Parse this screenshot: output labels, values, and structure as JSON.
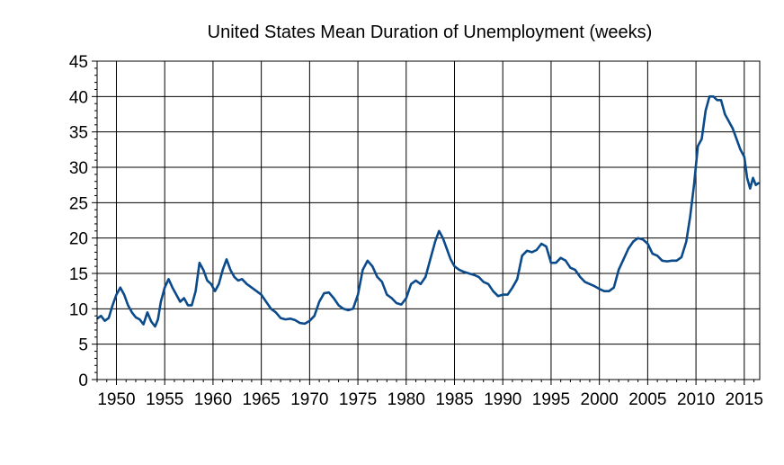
{
  "chart_data": {
    "type": "line",
    "title": "United States Mean Duration of Unemployment (weeks)",
    "xlabel": "",
    "ylabel": "",
    "xlim": [
      1948,
      2016.6
    ],
    "ylim": [
      0,
      45
    ],
    "x_ticks": [
      1950,
      1955,
      1960,
      1965,
      1970,
      1975,
      1980,
      1985,
      1990,
      1995,
      2000,
      2005,
      2010,
      2015
    ],
    "y_ticks": [
      0,
      5,
      10,
      15,
      20,
      25,
      30,
      35,
      40,
      45
    ],
    "grid": true,
    "series_color": "#0b4a8b",
    "series": [
      {
        "name": "",
        "points": [
          [
            1948.0,
            8.6
          ],
          [
            1948.4,
            9.0
          ],
          [
            1948.8,
            8.3
          ],
          [
            1949.2,
            8.7
          ],
          [
            1949.6,
            10.5
          ],
          [
            1950.0,
            12.0
          ],
          [
            1950.4,
            13.0
          ],
          [
            1950.8,
            12.0
          ],
          [
            1951.2,
            10.5
          ],
          [
            1951.6,
            9.5
          ],
          [
            1952.0,
            8.8
          ],
          [
            1952.4,
            8.5
          ],
          [
            1952.8,
            7.8
          ],
          [
            1953.2,
            9.5
          ],
          [
            1953.6,
            8.2
          ],
          [
            1954.0,
            7.5
          ],
          [
            1954.3,
            8.5
          ],
          [
            1954.6,
            11.0
          ],
          [
            1955.0,
            13.0
          ],
          [
            1955.4,
            14.2
          ],
          [
            1955.8,
            13.0
          ],
          [
            1956.2,
            12.0
          ],
          [
            1956.6,
            11.0
          ],
          [
            1957.0,
            11.5
          ],
          [
            1957.4,
            10.5
          ],
          [
            1957.8,
            10.5
          ],
          [
            1958.2,
            12.5
          ],
          [
            1958.6,
            16.5
          ],
          [
            1959.0,
            15.5
          ],
          [
            1959.4,
            14.0
          ],
          [
            1959.8,
            13.5
          ],
          [
            1960.2,
            12.5
          ],
          [
            1960.6,
            13.5
          ],
          [
            1961.0,
            15.5
          ],
          [
            1961.4,
            17.0
          ],
          [
            1961.8,
            15.5
          ],
          [
            1962.2,
            14.5
          ],
          [
            1962.6,
            14.0
          ],
          [
            1963.0,
            14.2
          ],
          [
            1963.5,
            13.5
          ],
          [
            1964.0,
            13.0
          ],
          [
            1964.5,
            12.5
          ],
          [
            1965.0,
            12.0
          ],
          [
            1965.5,
            11.0
          ],
          [
            1966.0,
            10.0
          ],
          [
            1966.5,
            9.5
          ],
          [
            1967.0,
            8.7
          ],
          [
            1967.5,
            8.5
          ],
          [
            1968.0,
            8.6
          ],
          [
            1968.5,
            8.4
          ],
          [
            1969.0,
            8.0
          ],
          [
            1969.5,
            7.9
          ],
          [
            1970.0,
            8.3
          ],
          [
            1970.5,
            9.0
          ],
          [
            1971.0,
            11.0
          ],
          [
            1971.5,
            12.2
          ],
          [
            1972.0,
            12.3
          ],
          [
            1972.5,
            11.5
          ],
          [
            1973.0,
            10.5
          ],
          [
            1973.5,
            10.0
          ],
          [
            1974.0,
            9.8
          ],
          [
            1974.5,
            10.0
          ],
          [
            1975.0,
            12.0
          ],
          [
            1975.5,
            15.5
          ],
          [
            1976.0,
            16.8
          ],
          [
            1976.5,
            16.0
          ],
          [
            1977.0,
            14.5
          ],
          [
            1977.5,
            13.8
          ],
          [
            1978.0,
            12.0
          ],
          [
            1978.5,
            11.5
          ],
          [
            1979.0,
            10.8
          ],
          [
            1979.5,
            10.6
          ],
          [
            1980.0,
            11.5
          ],
          [
            1980.5,
            13.5
          ],
          [
            1981.0,
            14.0
          ],
          [
            1981.5,
            13.5
          ],
          [
            1982.0,
            14.5
          ],
          [
            1982.5,
            17.0
          ],
          [
            1983.0,
            19.5
          ],
          [
            1983.4,
            21.0
          ],
          [
            1983.8,
            20.0
          ],
          [
            1984.2,
            18.5
          ],
          [
            1984.6,
            17.0
          ],
          [
            1985.0,
            16.0
          ],
          [
            1985.5,
            15.5
          ],
          [
            1986.0,
            15.2
          ],
          [
            1986.5,
            15.0
          ],
          [
            1987.0,
            14.8
          ],
          [
            1987.5,
            14.5
          ],
          [
            1988.0,
            13.8
          ],
          [
            1988.5,
            13.5
          ],
          [
            1989.0,
            12.5
          ],
          [
            1989.5,
            11.8
          ],
          [
            1990.0,
            12.0
          ],
          [
            1990.5,
            12.0
          ],
          [
            1991.0,
            13.0
          ],
          [
            1991.5,
            14.2
          ],
          [
            1992.0,
            17.5
          ],
          [
            1992.5,
            18.2
          ],
          [
            1993.0,
            18.0
          ],
          [
            1993.5,
            18.3
          ],
          [
            1994.0,
            19.2
          ],
          [
            1994.5,
            18.8
          ],
          [
            1995.0,
            16.5
          ],
          [
            1995.5,
            16.5
          ],
          [
            1996.0,
            17.2
          ],
          [
            1996.5,
            16.8
          ],
          [
            1997.0,
            15.8
          ],
          [
            1997.5,
            15.5
          ],
          [
            1998.0,
            14.5
          ],
          [
            1998.5,
            13.8
          ],
          [
            1999.0,
            13.5
          ],
          [
            1999.5,
            13.2
          ],
          [
            2000.0,
            12.8
          ],
          [
            2000.5,
            12.5
          ],
          [
            2001.0,
            12.5
          ],
          [
            2001.5,
            13.0
          ],
          [
            2002.0,
            15.5
          ],
          [
            2002.5,
            17.0
          ],
          [
            2003.0,
            18.5
          ],
          [
            2003.5,
            19.5
          ],
          [
            2004.0,
            20.0
          ],
          [
            2004.5,
            19.8
          ],
          [
            2005.0,
            19.2
          ],
          [
            2005.5,
            17.8
          ],
          [
            2006.0,
            17.5
          ],
          [
            2006.5,
            16.8
          ],
          [
            2007.0,
            16.7
          ],
          [
            2007.5,
            16.8
          ],
          [
            2008.0,
            16.8
          ],
          [
            2008.5,
            17.3
          ],
          [
            2009.0,
            19.5
          ],
          [
            2009.4,
            23.0
          ],
          [
            2009.8,
            27.5
          ],
          [
            2010.2,
            33.0
          ],
          [
            2010.6,
            34.0
          ],
          [
            2011.0,
            38.0
          ],
          [
            2011.4,
            40.0
          ],
          [
            2011.8,
            40.0
          ],
          [
            2012.2,
            39.5
          ],
          [
            2012.6,
            39.5
          ],
          [
            2013.0,
            37.5
          ],
          [
            2013.4,
            36.5
          ],
          [
            2013.8,
            35.5
          ],
          [
            2014.2,
            34.0
          ],
          [
            2014.6,
            32.5
          ],
          [
            2015.0,
            31.5
          ],
          [
            2015.3,
            28.5
          ],
          [
            2015.6,
            27.0
          ],
          [
            2015.9,
            28.5
          ],
          [
            2016.2,
            27.5
          ],
          [
            2016.5,
            27.8
          ]
        ]
      }
    ]
  }
}
